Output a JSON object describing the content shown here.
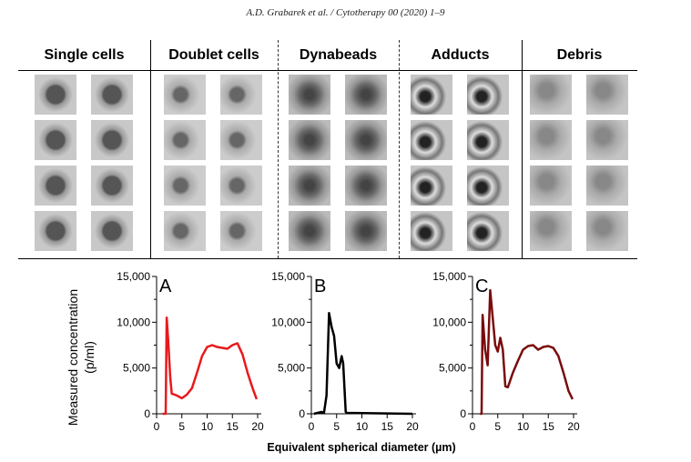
{
  "header": "A.D. Grabarek et al. / Cytotherapy 00 (2020) 1–9",
  "columns": [
    "Single cells",
    "Doublet cells",
    "Dynabeads",
    "Adducts",
    "Debris"
  ],
  "chart_data": [
    {
      "type": "line",
      "panel": "A",
      "color": "#e8191c",
      "xlim": [
        0,
        20
      ],
      "ylim": [
        0,
        15000
      ],
      "x": [
        1.2,
        1.8,
        2,
        2.3,
        2.7,
        3,
        4,
        5,
        6,
        7,
        8,
        9,
        10,
        11,
        12,
        13,
        14,
        15,
        16,
        17,
        18,
        19,
        19.8
      ],
      "y": [
        0,
        0,
        10500,
        8000,
        4000,
        2200,
        2000,
        1700,
        2100,
        2800,
        4500,
        6300,
        7300,
        7500,
        7300,
        7200,
        7100,
        7500,
        7700,
        6500,
        4500,
        2800,
        1600
      ]
    },
    {
      "type": "line",
      "panel": "B",
      "color": "#000000",
      "xlim": [
        0,
        20
      ],
      "ylim": [
        0,
        15000
      ],
      "x": [
        0.5,
        2,
        2.5,
        3,
        3.5,
        4,
        4.5,
        5,
        5.5,
        6,
        6.3,
        6.8,
        7,
        20
      ],
      "y": [
        0,
        200,
        100,
        2000,
        11000,
        9500,
        8500,
        5500,
        5000,
        6300,
        5500,
        200,
        100,
        0
      ]
    },
    {
      "type": "line",
      "panel": "C",
      "color": "#7a0c0c",
      "xlim": [
        0,
        20
      ],
      "ylim": [
        0,
        15000
      ],
      "x": [
        1.5,
        1.8,
        2,
        2.5,
        3,
        3.5,
        4,
        4.5,
        5,
        5.5,
        6,
        6.5,
        7,
        8,
        9,
        10,
        11,
        12,
        13,
        14,
        15,
        16,
        17,
        18,
        19,
        19.8
      ],
      "y": [
        0,
        0,
        10800,
        7000,
        5300,
        13500,
        10500,
        7500,
        6800,
        8300,
        7000,
        3000,
        2900,
        4500,
        5800,
        7000,
        7400,
        7500,
        7000,
        7300,
        7400,
        7200,
        6300,
        4500,
        2500,
        1600
      ]
    }
  ],
  "axes": {
    "ylabel1": "Measured concentration",
    "ylabel2": "(p/ml)",
    "xlabel": "Equivalent spherical diameter (µm)",
    "yticks": [
      "0",
      "5,000",
      "10,000",
      "15,000"
    ],
    "xticks": [
      "0",
      "5",
      "10",
      "15",
      "20"
    ]
  }
}
